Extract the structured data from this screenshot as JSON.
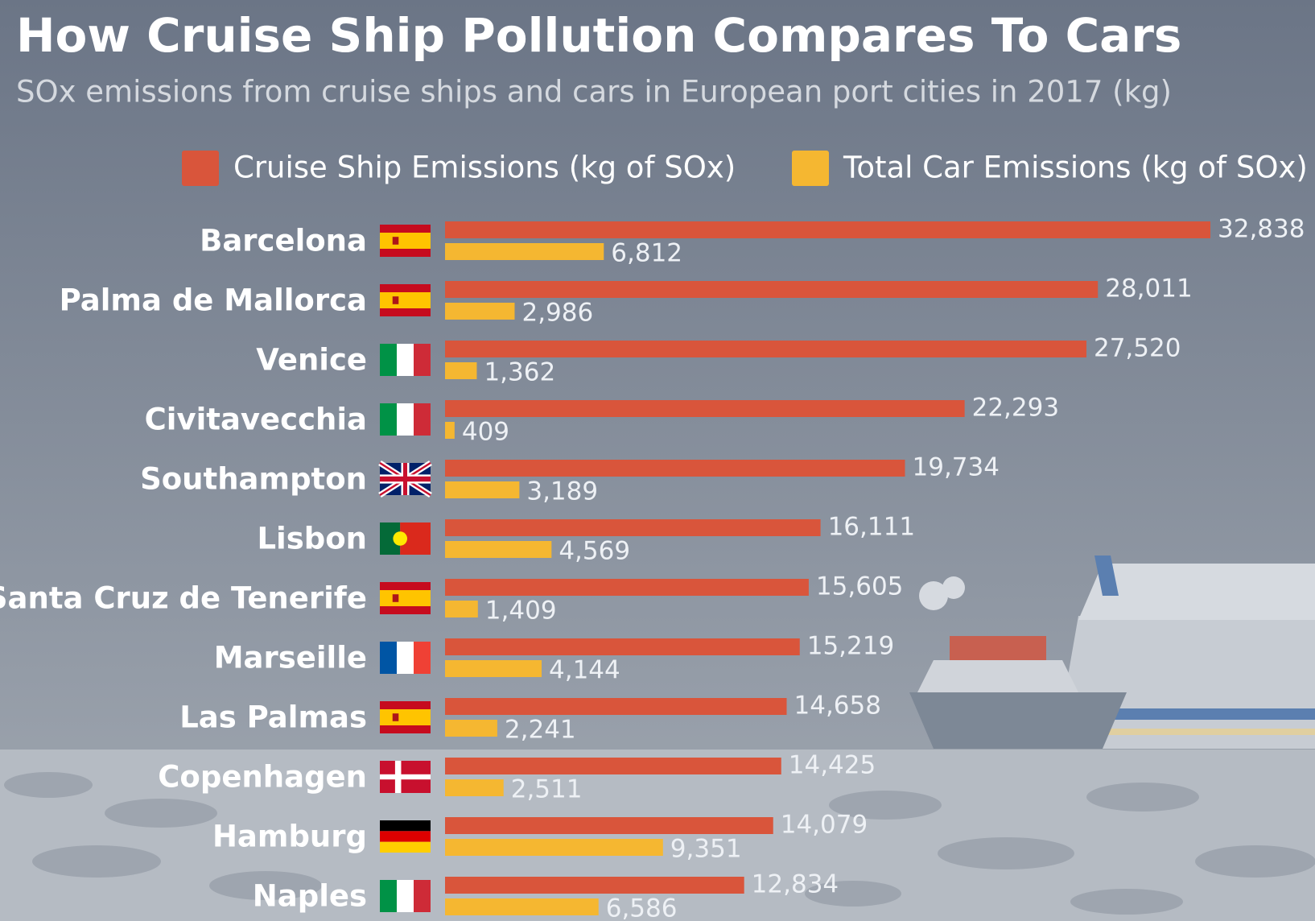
{
  "chart_data": {
    "type": "bar",
    "orientation": "horizontal",
    "title": "How Cruise Ship Pollution Compares To Cars",
    "subtitle": "SOx emissions from cruise ships and cars in European port cities in 2017 (kg)",
    "categories": [
      "Barcelona",
      "Palma de Mallorca",
      "Venice",
      "Civitavecchia",
      "Southampton",
      "Lisbon",
      "Santa Cruz de Tenerife",
      "Marseille",
      "Las Palmas",
      "Copenhagen",
      "Hamburg",
      "Naples"
    ],
    "series": [
      {
        "name": "Cruise Ship Emissions (kg of SOx)",
        "color": "#d9553b",
        "values": [
          32838,
          28011,
          27520,
          22293,
          19734,
          16111,
          15605,
          15219,
          14658,
          14425,
          14079,
          12834
        ],
        "value_labels": [
          "32,838",
          "28,011",
          "27,520",
          "22,293",
          "19,734",
          "16,111",
          "15,605",
          "15,219",
          "14,658",
          "14,425",
          "14,079",
          "12,834"
        ]
      },
      {
        "name": "Total Car Emissions (kg of SOx)",
        "color": "#f5b731",
        "values": [
          6812,
          2986,
          1362,
          409,
          3189,
          4569,
          1409,
          4144,
          2241,
          2511,
          9351,
          6586
        ],
        "value_labels": [
          "6,812",
          "2,986",
          "1,362",
          "409",
          "3,189",
          "4,569",
          "1,409",
          "4,144",
          "2,241",
          "2,511",
          "9,351",
          "6,586"
        ]
      }
    ]
  }
}
